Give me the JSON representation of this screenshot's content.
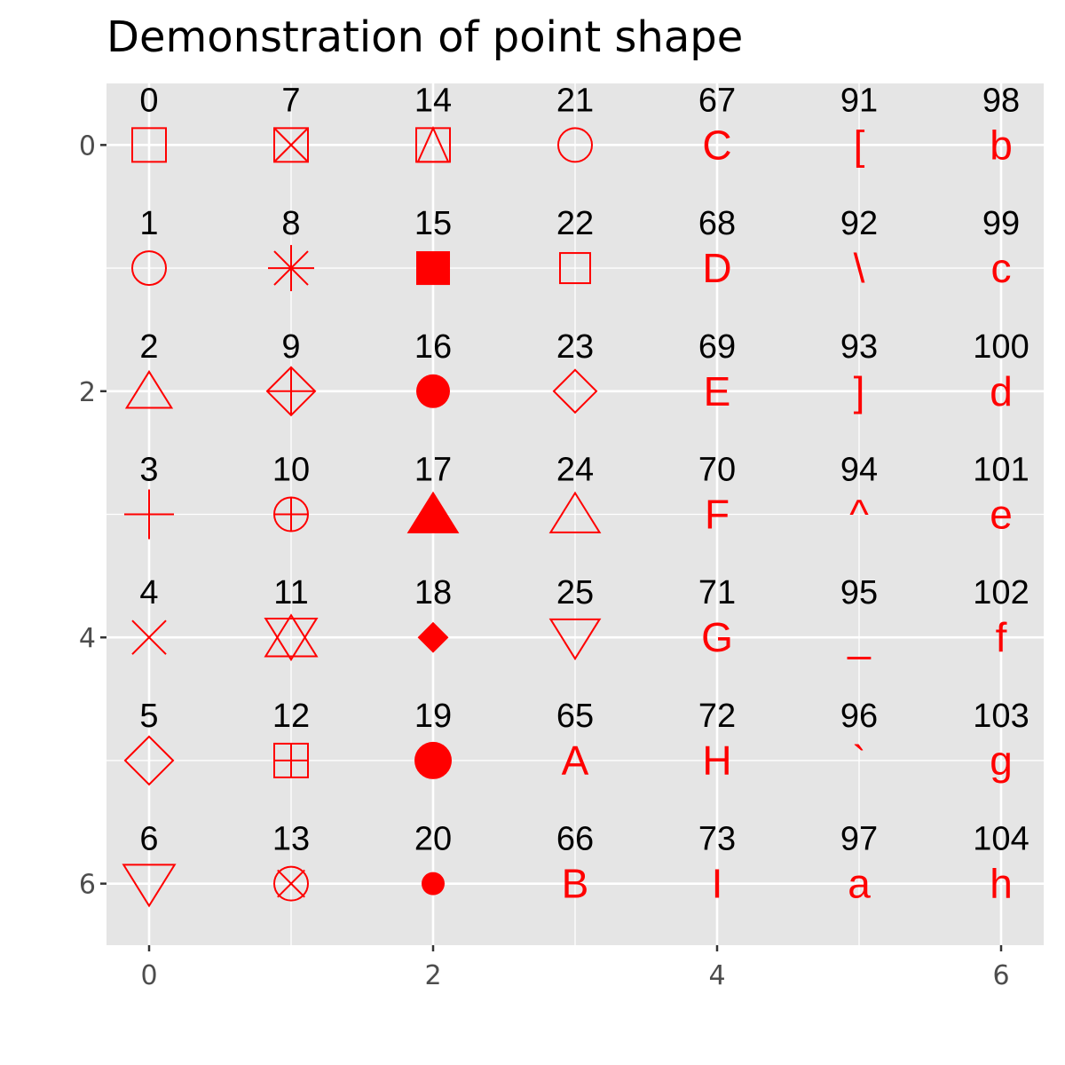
{
  "chart_data": {
    "type": "scatter",
    "title": "Demonstration of point shape",
    "xlabel": "",
    "ylabel": "",
    "xlim": [
      -0.3,
      6.3
    ],
    "ylim": [
      -0.5,
      6.5
    ],
    "y_reversed": true,
    "grid": true,
    "x_ticks": [
      0,
      2,
      4,
      6
    ],
    "y_ticks": [
      0,
      2,
      4,
      6
    ],
    "x_tick_labels": [
      "0",
      "2",
      "4",
      "6"
    ],
    "y_tick_labels": [
      "0",
      "2",
      "4",
      "6"
    ],
    "point_color": "#ff0000",
    "label_color": "#000000",
    "panel_color": "#e5e5e5",
    "grid_color": "#ffffff",
    "points": [
      {
        "x": 0,
        "y": 0,
        "label": "0",
        "shape": 0
      },
      {
        "x": 0,
        "y": 1,
        "label": "1",
        "shape": 1
      },
      {
        "x": 0,
        "y": 2,
        "label": "2",
        "shape": 2
      },
      {
        "x": 0,
        "y": 3,
        "label": "3",
        "shape": 3
      },
      {
        "x": 0,
        "y": 4,
        "label": "4",
        "shape": 4
      },
      {
        "x": 0,
        "y": 5,
        "label": "5",
        "shape": 5
      },
      {
        "x": 0,
        "y": 6,
        "label": "6",
        "shape": 6
      },
      {
        "x": 1,
        "y": 0,
        "label": "7",
        "shape": 7
      },
      {
        "x": 1,
        "y": 1,
        "label": "8",
        "shape": 8
      },
      {
        "x": 1,
        "y": 2,
        "label": "9",
        "shape": 9
      },
      {
        "x": 1,
        "y": 3,
        "label": "10",
        "shape": 10
      },
      {
        "x": 1,
        "y": 4,
        "label": "11",
        "shape": 11
      },
      {
        "x": 1,
        "y": 5,
        "label": "12",
        "shape": 12
      },
      {
        "x": 1,
        "y": 6,
        "label": "13",
        "shape": 13
      },
      {
        "x": 2,
        "y": 0,
        "label": "14",
        "shape": 14
      },
      {
        "x": 2,
        "y": 1,
        "label": "15",
        "shape": 15
      },
      {
        "x": 2,
        "y": 2,
        "label": "16",
        "shape": 16
      },
      {
        "x": 2,
        "y": 3,
        "label": "17",
        "shape": 17
      },
      {
        "x": 2,
        "y": 4,
        "label": "18",
        "shape": 18
      },
      {
        "x": 2,
        "y": 5,
        "label": "19",
        "shape": 19
      },
      {
        "x": 2,
        "y": 6,
        "label": "20",
        "shape": 20
      },
      {
        "x": 3,
        "y": 0,
        "label": "21",
        "shape": 21
      },
      {
        "x": 3,
        "y": 1,
        "label": "22",
        "shape": 22
      },
      {
        "x": 3,
        "y": 2,
        "label": "23",
        "shape": 23
      },
      {
        "x": 3,
        "y": 3,
        "label": "24",
        "shape": 24
      },
      {
        "x": 3,
        "y": 4,
        "label": "25",
        "shape": 25
      },
      {
        "x": 3,
        "y": 5,
        "label": "65",
        "shape": "A"
      },
      {
        "x": 3,
        "y": 6,
        "label": "66",
        "shape": "B"
      },
      {
        "x": 4,
        "y": 0,
        "label": "67",
        "shape": "C"
      },
      {
        "x": 4,
        "y": 1,
        "label": "68",
        "shape": "D"
      },
      {
        "x": 4,
        "y": 2,
        "label": "69",
        "shape": "E"
      },
      {
        "x": 4,
        "y": 3,
        "label": "70",
        "shape": "F"
      },
      {
        "x": 4,
        "y": 4,
        "label": "71",
        "shape": "G"
      },
      {
        "x": 4,
        "y": 5,
        "label": "72",
        "shape": "H"
      },
      {
        "x": 4,
        "y": 6,
        "label": "73",
        "shape": "I"
      },
      {
        "x": 5,
        "y": 0,
        "label": "91",
        "shape": "["
      },
      {
        "x": 5,
        "y": 1,
        "label": "92",
        "shape": "\\"
      },
      {
        "x": 5,
        "y": 2,
        "label": "93",
        "shape": "]"
      },
      {
        "x": 5,
        "y": 3,
        "label": "94",
        "shape": "^"
      },
      {
        "x": 5,
        "y": 4,
        "label": "95",
        "shape": "_"
      },
      {
        "x": 5,
        "y": 5,
        "label": "96",
        "shape": "`"
      },
      {
        "x": 5,
        "y": 6,
        "label": "97",
        "shape": "a"
      },
      {
        "x": 6,
        "y": 0,
        "label": "98",
        "shape": "b"
      },
      {
        "x": 6,
        "y": 1,
        "label": "99",
        "shape": "c"
      },
      {
        "x": 6,
        "y": 2,
        "label": "100",
        "shape": "d"
      },
      {
        "x": 6,
        "y": 3,
        "label": "101",
        "shape": "e"
      },
      {
        "x": 6,
        "y": 4,
        "label": "102",
        "shape": "f"
      },
      {
        "x": 6,
        "y": 5,
        "label": "103",
        "shape": "g"
      },
      {
        "x": 6,
        "y": 6,
        "label": "104",
        "shape": "h"
      }
    ]
  }
}
